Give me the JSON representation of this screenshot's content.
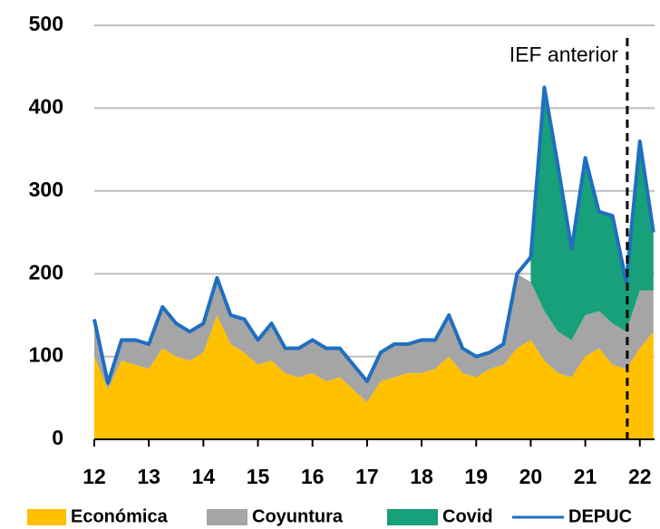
{
  "chart_data": {
    "type": "stacked-area",
    "x": [
      12.0,
      12.25,
      12.5,
      12.75,
      13.0,
      13.25,
      13.5,
      13.75,
      14.0,
      14.25,
      14.5,
      14.75,
      15.0,
      15.25,
      15.5,
      15.75,
      16.0,
      16.25,
      16.5,
      16.75,
      17.0,
      17.25,
      17.5,
      17.75,
      18.0,
      18.25,
      18.5,
      18.75,
      19.0,
      19.25,
      19.5,
      19.75,
      20.0,
      20.25,
      20.5,
      20.75,
      21.0,
      21.25,
      21.5,
      21.75,
      22.0,
      22.25
    ],
    "xlim": [
      12,
      22.27
    ],
    "xticks": [
      12,
      13,
      14,
      15,
      16,
      17,
      18,
      19,
      20,
      21,
      22
    ],
    "ylim": [
      0,
      500
    ],
    "yticks": [
      0,
      100,
      200,
      300,
      400,
      500
    ],
    "grid": true,
    "series": [
      {
        "name": "Económica",
        "color": "#ffc000",
        "type": "area",
        "values": [
          100,
          60,
          95,
          90,
          85,
          110,
          100,
          95,
          105,
          150,
          115,
          105,
          90,
          95,
          80,
          75,
          80,
          70,
          75,
          60,
          45,
          70,
          75,
          80,
          80,
          85,
          100,
          80,
          75,
          85,
          90,
          110,
          120,
          95,
          80,
          75,
          100,
          110,
          90,
          85,
          110,
          130
        ]
      },
      {
        "name": "Coyuntura",
        "color": "#a5a5a5",
        "type": "area",
        "values": [
          45,
          8,
          25,
          30,
          30,
          50,
          40,
          35,
          35,
          45,
          35,
          40,
          30,
          45,
          30,
          35,
          40,
          40,
          35,
          30,
          25,
          35,
          40,
          35,
          40,
          35,
          50,
          30,
          25,
          20,
          25,
          90,
          70,
          60,
          50,
          45,
          50,
          45,
          50,
          45,
          70,
          50
        ]
      },
      {
        "name": "Covid",
        "color": "#17a079",
        "type": "area",
        "values": [
          null,
          null,
          null,
          null,
          null,
          null,
          null,
          null,
          null,
          null,
          null,
          null,
          null,
          null,
          null,
          null,
          null,
          null,
          null,
          null,
          null,
          null,
          null,
          null,
          null,
          null,
          null,
          null,
          null,
          null,
          null,
          null,
          30,
          270,
          200,
          110,
          190,
          120,
          130,
          60,
          180,
          70
        ]
      },
      {
        "name": "DEPUC",
        "color": "#1f6fc0",
        "type": "line",
        "values": [
          145,
          68,
          120,
          120,
          115,
          160,
          140,
          130,
          140,
          195,
          150,
          145,
          120,
          140,
          110,
          110,
          120,
          110,
          110,
          90,
          70,
          105,
          115,
          115,
          120,
          120,
          150,
          110,
          100,
          105,
          115,
          200,
          220,
          425,
          330,
          230,
          340,
          275,
          270,
          190,
          360,
          250
        ]
      }
    ],
    "annotation": {
      "text": "IEF anterior",
      "x": 21.77
    }
  }
}
